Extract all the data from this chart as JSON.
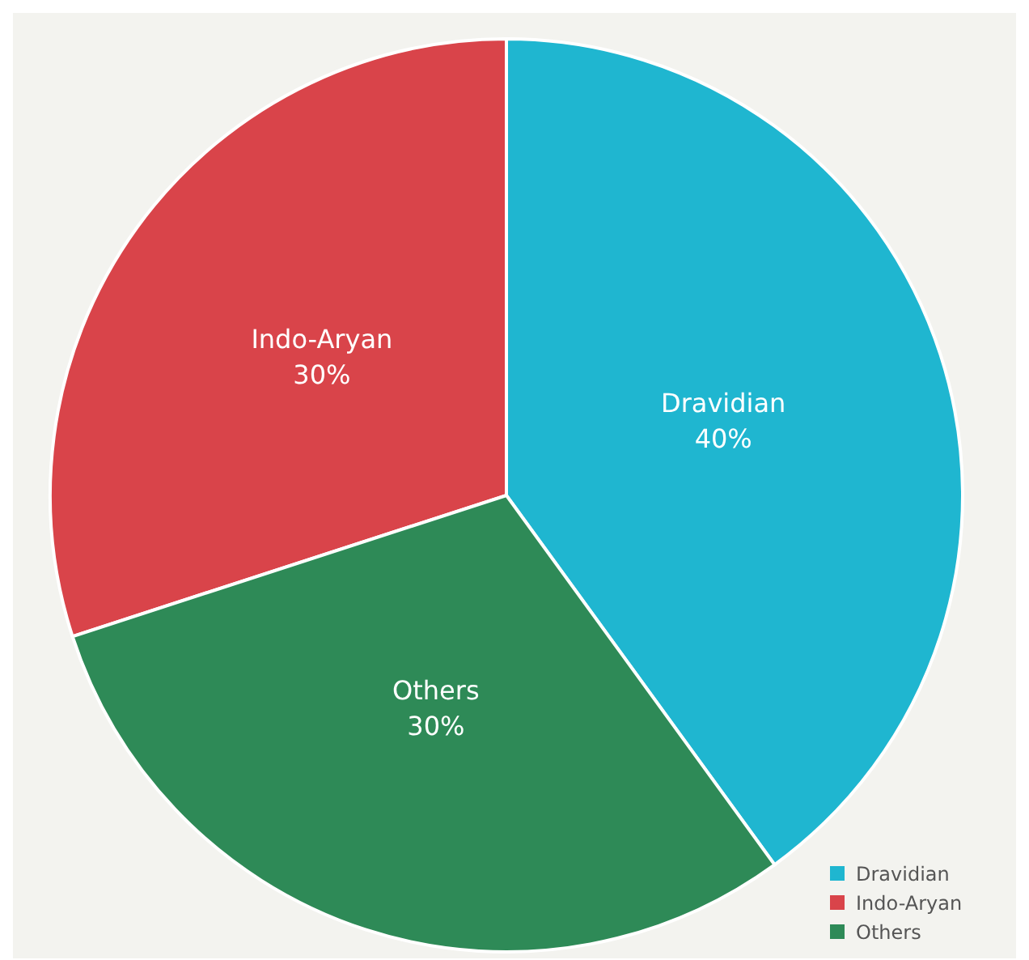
{
  "chart_data": {
    "type": "pie",
    "categories": [
      "Dravidian",
      "Indo-Aryan",
      "Others"
    ],
    "values": [
      40,
      30,
      30
    ],
    "value_labels": [
      "40%",
      "30%",
      "30%"
    ],
    "colors": [
      "#1fb6d0",
      "#d9444a",
      "#2e8a57"
    ],
    "legend": "bottom right"
  }
}
